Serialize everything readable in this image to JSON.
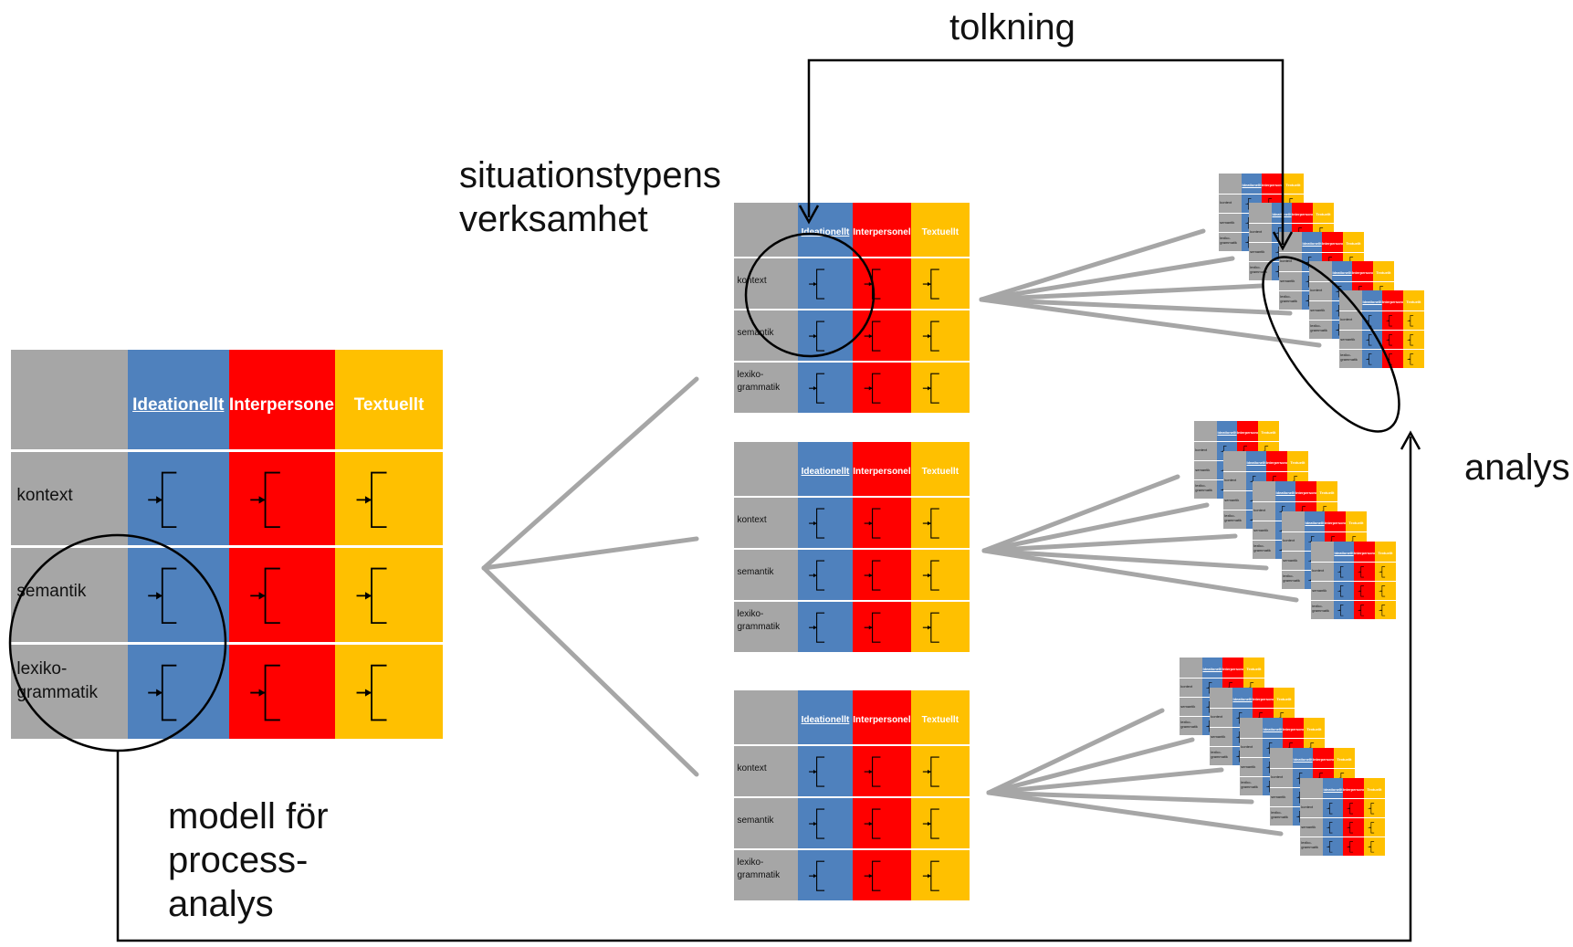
{
  "labels": {
    "tolkning": "tolkning",
    "situation": "situationstypens\nverksamhet",
    "analys": "analys",
    "modell": "modell för\nprocess-\nanalys"
  },
  "table": {
    "columns": [
      "Ideationellt",
      "Interpersonellt",
      "Textuellt"
    ],
    "rows": [
      "kontext",
      "semantik",
      "lexiko-\ngrammatik"
    ],
    "colors": {
      "blank": "#a6a6a6",
      "ideationellt": "#4f81bd",
      "interpersonellt": "#ff0000",
      "textuellt": "#ffc000",
      "divider": "#ffffff",
      "line": "#a6a6a6",
      "arrow": "#000000"
    }
  }
}
